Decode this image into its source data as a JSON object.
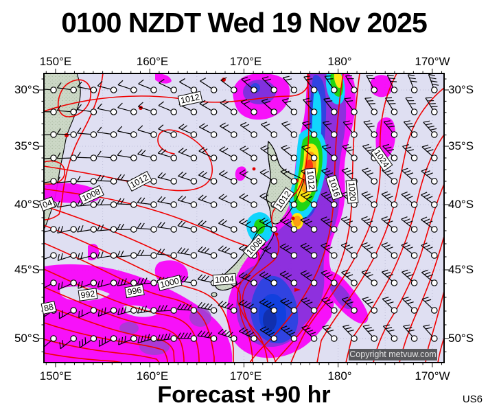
{
  "title": "0100 NZDT Wed 19 Nov 2025",
  "map": {
    "lon_labels": [
      "150°E",
      "160°E",
      "170°E",
      "180°",
      "170°W"
    ],
    "lat_labels": [
      "30°S",
      "35°S",
      "40°S",
      "45°S",
      "50°S"
    ],
    "isobar_labels": [
      "1012",
      "1012",
      "1008",
      "04",
      "88",
      "992",
      "996",
      "1000",
      "1004",
      "1008",
      "1012",
      "1012",
      "1016",
      "1020",
      "1024"
    ],
    "copyright": "Copyright metvuw.com",
    "colors": {
      "sea": "#dfdff2",
      "land": "#ccd8c6",
      "isobar": "#f00000",
      "precip_scale": [
        "#fa00fa",
        "#8822dd",
        "#2236e0",
        "#00d5ff",
        "#11d500",
        "#ffe800",
        "#ff9900",
        "#ff2a00"
      ]
    }
  },
  "footer": {
    "forecast_label": "Forecast +90 hr",
    "model_code": "US6"
  }
}
